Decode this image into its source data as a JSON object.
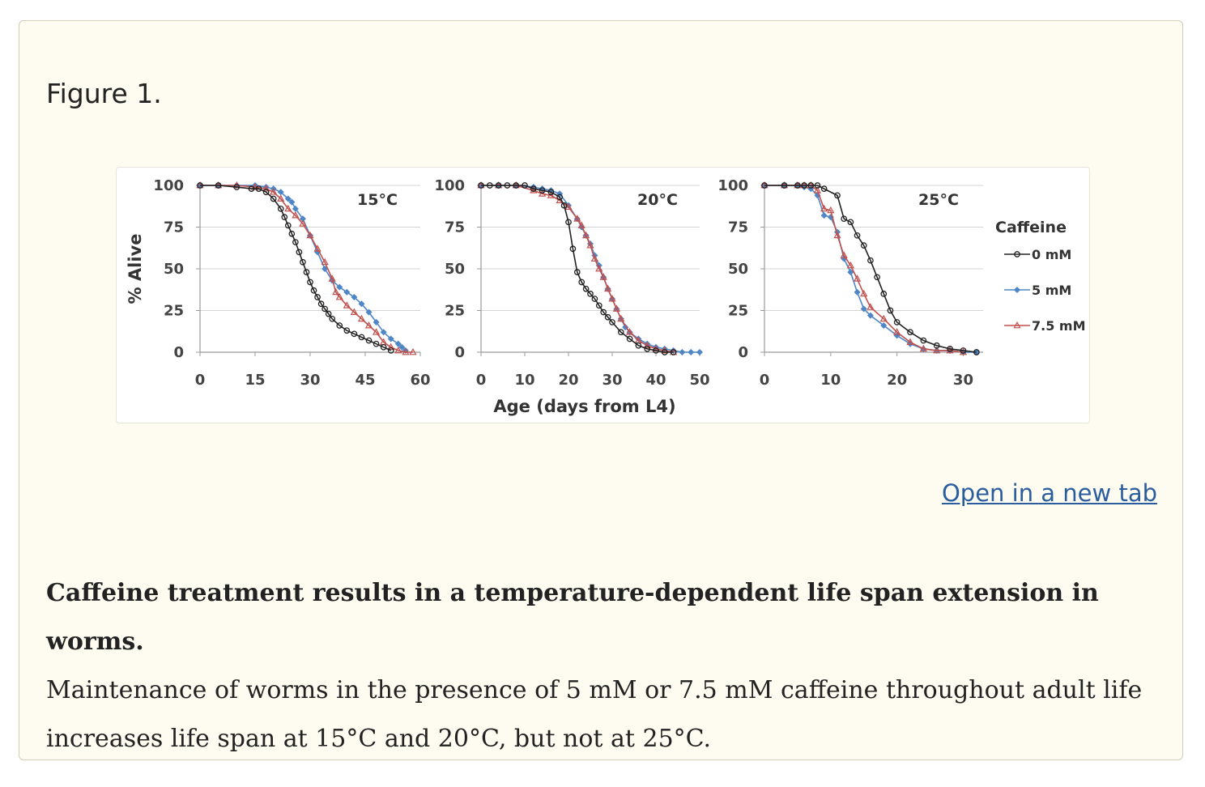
{
  "figure": {
    "label": "Figure 1.",
    "open_link": "Open in a new tab"
  },
  "caption": {
    "title": "Caffeine treatment results in a temperature-dependent life span extension in worms.",
    "text": "Maintenance of worms in the presence of 5 mM or 7.5 mM caffeine throughout adult life increases life span at 15°C and 20°C, but not at 25°C."
  },
  "colors": {
    "0mM": "#222222",
    "5mM": "#4f86c6",
    "7_5mM": "#c0504d",
    "grid": "#d4d4d4",
    "axis": "#9a9a9a",
    "link": "#2a5d9e"
  },
  "chart_data": {
    "type": "line",
    "ylabel": "% Alive",
    "xlabel": "Age (days from L4)",
    "legend_title": "Caffeine",
    "legend_position": "right",
    "yticks": [
      "100",
      "75",
      "50",
      "25",
      "0"
    ],
    "series_names": [
      "0 mM",
      "5 mM",
      "7.5 mM"
    ],
    "panels": [
      {
        "title": "15°C",
        "xlim": [
          0,
          60
        ],
        "ylim": [
          0,
          100
        ],
        "xticks": [
          "0",
          "15",
          "30",
          "45",
          "60"
        ],
        "series": [
          {
            "name": "0 mM",
            "x": [
              0,
              5,
              10,
              14,
              16,
              18,
              20,
              22,
              23,
              24,
              25,
              26,
              27,
              28,
              29,
              30,
              31,
              32,
              33,
              34,
              35,
              36,
              38,
              40,
              42,
              44,
              46,
              48,
              50,
              52
            ],
            "y": [
              100,
              100,
              99,
              98,
              98,
              96,
              92,
              86,
              81,
              76,
              71,
              66,
              60,
              54,
              48,
              42,
              37,
              33,
              29,
              26,
              23,
              20,
              16,
              13,
              11,
              9,
              7,
              5,
              3,
              1
            ]
          },
          {
            "name": "5 mM",
            "x": [
              0,
              5,
              10,
              15,
              18,
              20,
              22,
              24,
              25,
              26,
              28,
              30,
              32,
              34,
              36,
              38,
              40,
              42,
              44,
              46,
              48,
              50,
              52,
              54,
              55,
              56
            ],
            "y": [
              100,
              100,
              100,
              100,
              99,
              98,
              96,
              92,
              90,
              86,
              80,
              70,
              60,
              50,
              43,
              39,
              36,
              33,
              29,
              24,
              18,
              12,
              8,
              5,
              3,
              1
            ]
          },
          {
            "name": "7.5 mM",
            "x": [
              0,
              5,
              10,
              15,
              18,
              20,
              22,
              24,
              26,
              28,
              30,
              32,
              34,
              36,
              37,
              38,
              40,
              42,
              44,
              46,
              48,
              50,
              52,
              54,
              56,
              58
            ],
            "y": [
              100,
              100,
              100,
              99,
              98,
              96,
              92,
              86,
              82,
              77,
              70,
              62,
              54,
              44,
              36,
              33,
              28,
              24,
              20,
              16,
              12,
              6,
              3,
              1,
              0,
              0
            ]
          }
        ]
      },
      {
        "title": "20°C",
        "xlim": [
          0,
          50
        ],
        "ylim": [
          0,
          100
        ],
        "xticks": [
          "0",
          "10",
          "20",
          "30",
          "40",
          "50"
        ],
        "series": [
          {
            "name": "0 mM",
            "x": [
              0,
              2,
              4,
              6,
              8,
              10,
              12,
              14,
              16,
              18,
              19,
              20,
              21,
              22,
              23,
              24,
              25,
              26,
              27,
              28,
              29,
              30,
              32,
              34,
              36,
              38,
              40,
              42,
              44
            ],
            "y": [
              100,
              100,
              100,
              100,
              100,
              100,
              98,
              97,
              96,
              93,
              88,
              78,
              62,
              48,
              42,
              38,
              35,
              32,
              28,
              24,
              21,
              18,
              12,
              8,
              4,
              2,
              1,
              0,
              0
            ]
          },
          {
            "name": "5 mM",
            "x": [
              0,
              4,
              8,
              12,
              14,
              16,
              18,
              20,
              22,
              23,
              24,
              25,
              26,
              27,
              28,
              29,
              30,
              31,
              32,
              33,
              34,
              36,
              38,
              40,
              42,
              44,
              46,
              48,
              50
            ],
            "y": [
              100,
              100,
              100,
              99,
              98,
              97,
              95,
              88,
              80,
              75,
              70,
              65,
              58,
              52,
              45,
              38,
              32,
              26,
              20,
              15,
              12,
              8,
              5,
              3,
              2,
              1,
              0,
              0,
              0
            ]
          },
          {
            "name": "7.5 mM",
            "x": [
              0,
              4,
              8,
              12,
              14,
              16,
              18,
              20,
              22,
              23,
              24,
              25,
              26,
              27,
              28,
              29,
              30,
              31,
              32,
              34,
              36,
              38,
              40,
              42,
              44
            ],
            "y": [
              100,
              100,
              100,
              97,
              95,
              94,
              91,
              87,
              80,
              76,
              70,
              64,
              56,
              50,
              45,
              38,
              32,
              26,
              20,
              12,
              7,
              4,
              2,
              1,
              0
            ]
          }
        ]
      },
      {
        "title": "25°C",
        "xlim": [
          0,
          33
        ],
        "ylim": [
          0,
          100
        ],
        "xticks": [
          "0",
          "10",
          "20",
          "30"
        ],
        "series": [
          {
            "name": "0 mM",
            "x": [
              0,
              3,
              5,
              6,
              7,
              8,
              9,
              11,
              12,
              13,
              14,
              15,
              16,
              17,
              18,
              19,
              20,
              22,
              24,
              26,
              28,
              30,
              32
            ],
            "y": [
              100,
              100,
              100,
              100,
              100,
              100,
              98,
              94,
              80,
              78,
              70,
              64,
              55,
              45,
              35,
              25,
              18,
              12,
              7,
              4,
              2,
              1,
              0
            ]
          },
          {
            "name": "5 mM",
            "x": [
              0,
              3,
              5,
              6,
              7,
              8,
              9,
              10,
              11,
              12,
              13,
              14,
              15,
              16,
              18,
              20,
              22,
              24,
              26,
              28,
              30,
              32
            ],
            "y": [
              100,
              100,
              100,
              99,
              98,
              94,
              82,
              81,
              72,
              56,
              48,
              36,
              26,
              22,
              16,
              10,
              5,
              2,
              1,
              1,
              0,
              0
            ]
          },
          {
            "name": "7.5 mM",
            "x": [
              0,
              3,
              5,
              6,
              7,
              8,
              9,
              10,
              11,
              12,
              13,
              14,
              15,
              16,
              18,
              20,
              22,
              24,
              26,
              28,
              30
            ],
            "y": [
              100,
              100,
              100,
              100,
              100,
              97,
              86,
              85,
              70,
              58,
              52,
              44,
              35,
              27,
              20,
              12,
              6,
              2,
              1,
              1,
              0
            ]
          }
        ]
      }
    ]
  }
}
